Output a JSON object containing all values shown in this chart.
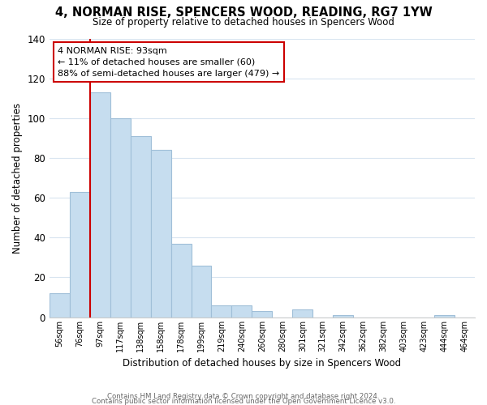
{
  "title": "4, NORMAN RISE, SPENCERS WOOD, READING, RG7 1YW",
  "subtitle": "Size of property relative to detached houses in Spencers Wood",
  "xlabel": "Distribution of detached houses by size in Spencers Wood",
  "ylabel": "Number of detached properties",
  "bin_labels": [
    "56sqm",
    "76sqm",
    "97sqm",
    "117sqm",
    "138sqm",
    "158sqm",
    "178sqm",
    "199sqm",
    "219sqm",
    "240sqm",
    "260sqm",
    "280sqm",
    "301sqm",
    "321sqm",
    "342sqm",
    "362sqm",
    "382sqm",
    "403sqm",
    "423sqm",
    "444sqm",
    "464sqm"
  ],
  "bar_heights": [
    12,
    63,
    113,
    100,
    91,
    84,
    37,
    26,
    6,
    6,
    3,
    0,
    4,
    0,
    1,
    0,
    0,
    0,
    0,
    1,
    0
  ],
  "bar_color": "#c6ddef",
  "bar_edge_color": "#a0bfd8",
  "ylim": [
    0,
    140
  ],
  "yticks": [
    0,
    20,
    40,
    60,
    80,
    100,
    120,
    140
  ],
  "marker_line_color": "#cc0000",
  "annotation_text": "4 NORMAN RISE: 93sqm\n← 11% of detached houses are smaller (60)\n88% of semi-detached houses are larger (479) →",
  "annotation_box_color": "#ffffff",
  "annotation_box_edge": "#cc0000",
  "footer_line1": "Contains HM Land Registry data © Crown copyright and database right 2024.",
  "footer_line2": "Contains public sector information licensed under the Open Government Licence v3.0.",
  "background_color": "#ffffff",
  "grid_color": "#d8e4f0"
}
